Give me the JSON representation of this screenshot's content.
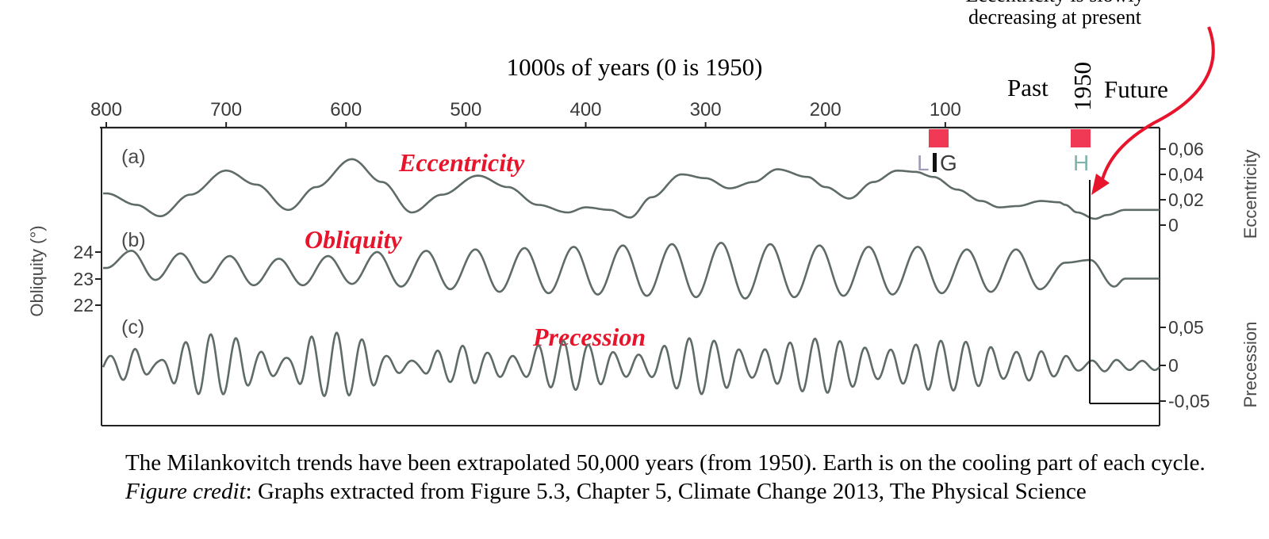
{
  "annotation_top": {
    "line1": "Eccentricity is slowly",
    "line2": "decreasing at present"
  },
  "x_axis_label": "1000s of years (0 is 1950)",
  "past_label": "Past",
  "future_label": "Future",
  "year_1950_label": "1950",
  "panels": {
    "a": {
      "letter": "(a)",
      "name": "Eccentricity"
    },
    "b": {
      "letter": "(b)",
      "name": "Obliquity"
    },
    "c": {
      "letter": "(c)",
      "name": "Precession"
    }
  },
  "markers": {
    "lig": {
      "label_l": "L",
      "label_ig": "G"
    },
    "h": {
      "label": "H"
    }
  },
  "y_axis_left": {
    "label": "Obliquity (°)",
    "ticks": [
      "24",
      "23",
      "22"
    ]
  },
  "y_axis_right_ecc": {
    "label": "Eccentricity",
    "ticks": [
      "0,06",
      "0,04",
      "0,02",
      "0"
    ]
  },
  "y_axis_right_prec": {
    "label": "Precession",
    "ticks": [
      "0,05",
      "0",
      "-0,05"
    ]
  },
  "caption": {
    "text": "The Milankovitch trends have been extrapolated 50,000 years (from 1950). Earth is on the cooling part of each cycle.",
    "credit_label": "Figure credit",
    "credit_text": ": Graphs extracted from Figure 5.3, Chapter 5, Climate Change 2013, The Physical Science"
  },
  "colors": {
    "curve": "#5f6b67",
    "accent_red": "#e8142c",
    "marker_red": "#f03a55",
    "axis": "#222222"
  },
  "chart_data": {
    "type": "line",
    "title": "",
    "xlabel": "1000s of years (0 is 1950)",
    "x_ticks": [
      800,
      700,
      600,
      500,
      400,
      300,
      200,
      100
    ],
    "xlim": [
      800,
      -50
    ],
    "x_direction": "reversed",
    "series": [
      {
        "name": "Eccentricity",
        "unit": "",
        "ylim": [
          -0.005,
          0.07
        ],
        "x": [
          800,
          775,
          755,
          730,
          700,
          675,
          648,
          625,
          595,
          570,
          545,
          520,
          490,
          465,
          440,
          415,
          400,
          380,
          363,
          345,
          320,
          300,
          280,
          260,
          240,
          215,
          200,
          180,
          160,
          140,
          125,
          110,
          90,
          70,
          55,
          40,
          20,
          5,
          0,
          -10,
          -25,
          -35,
          -50
        ],
        "values": [
          0.025,
          0.016,
          0.007,
          0.024,
          0.043,
          0.032,
          0.012,
          0.03,
          0.052,
          0.034,
          0.01,
          0.024,
          0.039,
          0.03,
          0.016,
          0.01,
          0.014,
          0.012,
          0.006,
          0.022,
          0.04,
          0.037,
          0.029,
          0.034,
          0.044,
          0.038,
          0.03,
          0.021,
          0.034,
          0.043,
          0.042,
          0.038,
          0.028,
          0.019,
          0.014,
          0.015,
          0.019,
          0.018,
          0.016,
          0.01,
          0.005,
          0.008,
          0.012
        ]
      },
      {
        "name": "Obliquity",
        "unit": "°",
        "ylim": [
          21.5,
          24.6
        ],
        "period_kyr": 41,
        "x": [
          800,
          779,
          759,
          738,
          718,
          697,
          677,
          656,
          636,
          615,
          595,
          574,
          554,
          533,
          513,
          492,
          472,
          451,
          431,
          410,
          390,
          369,
          349,
          328,
          308,
          287,
          267,
          246,
          226,
          205,
          185,
          164,
          144,
          123,
          103,
          82,
          62,
          41,
          21,
          0,
          -21,
          -41,
          -50
        ],
        "values": [
          23.4,
          24.05,
          22.95,
          23.95,
          22.85,
          23.85,
          22.75,
          23.75,
          22.75,
          23.85,
          22.8,
          24.0,
          22.7,
          24.05,
          22.6,
          24.1,
          22.5,
          24.15,
          22.45,
          24.2,
          22.4,
          24.25,
          22.35,
          24.3,
          22.3,
          24.35,
          22.25,
          24.3,
          22.3,
          24.25,
          22.35,
          24.2,
          22.4,
          24.2,
          22.45,
          24.1,
          22.5,
          24.1,
          22.6,
          23.6,
          23.7,
          22.7,
          23.0
        ]
      },
      {
        "name": "Precession",
        "unit": "",
        "ylim": [
          -0.06,
          0.06
        ],
        "period_kyr": 21,
        "x": [
          800,
          778,
          757,
          737,
          715,
          693,
          671,
          650,
          628,
          607,
          585,
          564,
          542,
          521,
          500,
          478,
          456,
          435,
          413,
          392,
          370,
          349,
          327,
          306,
          285,
          263,
          242,
          220,
          199,
          177,
          156,
          134,
          113,
          91,
          70,
          48,
          27,
          5,
          -16,
          -38,
          -50
        ],
        "amplitude": [
          0.012,
          0.022,
          0.006,
          0.03,
          0.041,
          0.036,
          0.018,
          0.01,
          0.038,
          0.043,
          0.034,
          0.012,
          0.006,
          0.02,
          0.026,
          0.016,
          0.012,
          0.028,
          0.033,
          0.026,
          0.015,
          0.014,
          0.03,
          0.038,
          0.03,
          0.016,
          0.024,
          0.034,
          0.036,
          0.028,
          0.018,
          0.024,
          0.032,
          0.033,
          0.027,
          0.017,
          0.02,
          0.014,
          0.006,
          0.008,
          0.006
        ]
      }
    ],
    "annotations": [
      "Eccentricity",
      "Obliquity",
      "Precession",
      "LIG",
      "H",
      "Past",
      "Future",
      "1950"
    ]
  }
}
